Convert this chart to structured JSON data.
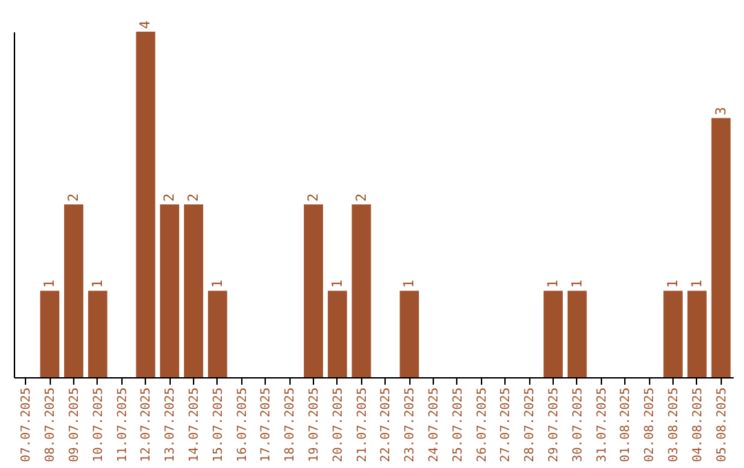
{
  "chart_data": {
    "type": "bar",
    "categories": [
      "07.07.2025",
      "08.07.2025",
      "09.07.2025",
      "10.07.2025",
      "11.07.2025",
      "12.07.2025",
      "13.07.2025",
      "14.07.2025",
      "15.07.2025",
      "16.07.2025",
      "17.07.2025",
      "18.07.2025",
      "19.07.2025",
      "20.07.2025",
      "21.07.2025",
      "22.07.2025",
      "23.07.2025",
      "24.07.2025",
      "25.07.2025",
      "26.07.2025",
      "27.07.2025",
      "28.07.2025",
      "29.07.2025",
      "30.07.2025",
      "31.07.2025",
      "01.08.2025",
      "02.08.2025",
      "03.08.2025",
      "04.08.2025",
      "05.08.2025"
    ],
    "values": [
      0,
      1,
      2,
      1,
      0,
      4,
      2,
      2,
      1,
      0,
      0,
      0,
      2,
      1,
      2,
      0,
      1,
      0,
      0,
      0,
      0,
      0,
      1,
      1,
      0,
      0,
      0,
      1,
      1,
      3
    ],
    "value_labels": [
      null,
      "1",
      "2",
      "1",
      null,
      "4",
      "2",
      "2",
      "1",
      null,
      null,
      null,
      "2",
      "1",
      "2",
      null,
      "1",
      null,
      null,
      null,
      null,
      null,
      "1",
      "1",
      null,
      null,
      null,
      "1",
      "1",
      "3"
    ],
    "color": "#a0522d",
    "tick_labels": "x"
  }
}
